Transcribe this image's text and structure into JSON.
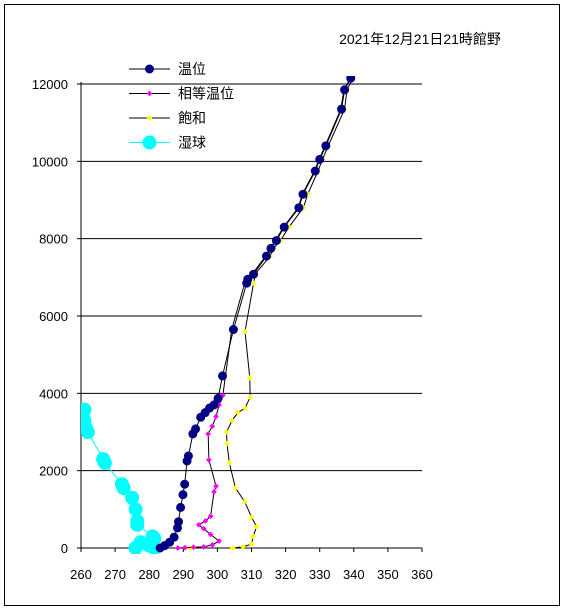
{
  "chart_data": {
    "type": "scatter",
    "title": "2021年12月21日21時館野",
    "xlim": [
      260,
      360
    ],
    "ylim": [
      0,
      12000
    ],
    "xticks": [
      260,
      270,
      280,
      290,
      300,
      310,
      320,
      330,
      340,
      350,
      360
    ],
    "yticks": [
      0,
      2000,
      4000,
      6000,
      8000,
      10000,
      12000
    ],
    "grid": "horizontal",
    "legend_position": "top-left",
    "series": [
      {
        "name": "温位",
        "color": "#000080",
        "marker": "circle-medium",
        "points": [
          [
            283.2,
            0
          ],
          [
            284.5,
            60
          ],
          [
            286.0,
            150
          ],
          [
            287.3,
            280
          ],
          [
            288.3,
            520
          ],
          [
            288.6,
            680
          ],
          [
            289.2,
            1050
          ],
          [
            289.9,
            1380
          ],
          [
            290.4,
            1650
          ],
          [
            291.1,
            2250
          ],
          [
            291.5,
            2380
          ],
          [
            292.8,
            2950
          ],
          [
            293.6,
            3080
          ],
          [
            295.1,
            3380
          ],
          [
            296.4,
            3500
          ],
          [
            297.7,
            3620
          ],
          [
            299.0,
            3700
          ],
          [
            300.2,
            3870
          ],
          [
            301.5,
            4450
          ],
          [
            304.7,
            5650
          ],
          [
            308.6,
            6850
          ],
          [
            308.9,
            6950
          ],
          [
            310.6,
            7080
          ],
          [
            314.4,
            7550
          ],
          [
            315.7,
            7750
          ],
          [
            317.3,
            7950
          ],
          [
            319.6,
            8300
          ],
          [
            323.9,
            8800
          ],
          [
            325.1,
            9150
          ],
          [
            328.7,
            9750
          ],
          [
            330.0,
            10050
          ],
          [
            331.8,
            10400
          ],
          [
            336.4,
            11350
          ],
          [
            337.3,
            11850
          ],
          [
            339.1,
            12150
          ]
        ]
      },
      {
        "name": "相等温位",
        "color": "#ff00ff",
        "marker": "diamond-small",
        "points": [
          [
            288.4,
            0
          ],
          [
            290.5,
            10
          ],
          [
            293.0,
            20
          ],
          [
            296.0,
            30
          ],
          [
            298.5,
            80
          ],
          [
            300.5,
            180
          ],
          [
            298.0,
            350
          ],
          [
            296.0,
            500
          ],
          [
            294.5,
            600
          ],
          [
            296.5,
            700
          ],
          [
            298.0,
            820
          ],
          [
            299.0,
            1450
          ],
          [
            299.6,
            1600
          ],
          [
            297.5,
            2280
          ],
          [
            297.3,
            2950
          ],
          [
            298.5,
            3150
          ],
          [
            299.6,
            3400
          ],
          [
            300.5,
            3700
          ],
          [
            301.6,
            3950
          ],
          [
            304.2,
            5650
          ],
          [
            308.0,
            6850
          ],
          [
            308.5,
            6950
          ],
          [
            310.3,
            7100
          ],
          [
            314.2,
            7550
          ],
          [
            315.4,
            7750
          ],
          [
            317.0,
            7950
          ],
          [
            319.4,
            8300
          ],
          [
            323.7,
            8800
          ],
          [
            324.9,
            9150
          ],
          [
            328.5,
            9750
          ],
          [
            329.8,
            10050
          ],
          [
            331.6,
            10400
          ],
          [
            336.2,
            11350
          ],
          [
            337.1,
            11850
          ],
          [
            339.0,
            12150
          ]
        ]
      },
      {
        "name": "飽和",
        "color": "#ffff00",
        "marker": "diamond-small",
        "points": [
          [
            292.0,
            0
          ],
          [
            304.5,
            0
          ],
          [
            307.5,
            30
          ],
          [
            310.0,
            100
          ],
          [
            310.5,
            300
          ],
          [
            311.5,
            550
          ],
          [
            310.0,
            800
          ],
          [
            308.0,
            1200
          ],
          [
            305.3,
            1550
          ],
          [
            303.5,
            2200
          ],
          [
            302.8,
            2700
          ],
          [
            302.7,
            3000
          ],
          [
            304.3,
            3300
          ],
          [
            306.0,
            3500
          ],
          [
            308.1,
            3620
          ],
          [
            309.6,
            3900
          ],
          [
            309.5,
            4400
          ],
          [
            308.1,
            5600
          ],
          [
            310.6,
            6850
          ],
          [
            311.2,
            7100
          ],
          [
            315.5,
            7550
          ],
          [
            316.5,
            7750
          ],
          [
            318.5,
            7950
          ],
          [
            321.0,
            8300
          ],
          [
            325.2,
            8800
          ],
          [
            326.5,
            9150
          ],
          [
            329.5,
            9750
          ],
          [
            330.8,
            10050
          ],
          [
            332.5,
            10400
          ],
          [
            337.3,
            11350
          ],
          [
            338.0,
            11850
          ],
          [
            339.8,
            12150
          ]
        ]
      },
      {
        "name": "湿球",
        "color": "#00ffff",
        "marker": "circle-large",
        "points": [
          [
            281.5,
            0
          ],
          [
            280.0,
            60
          ],
          [
            278.0,
            120
          ],
          [
            276.0,
            0
          ],
          [
            277.5,
            150
          ],
          [
            281.5,
            250
          ],
          [
            281.0,
            300
          ],
          [
            276.5,
            600
          ],
          [
            276.5,
            700
          ],
          [
            276.0,
            1000
          ],
          [
            275.0,
            1300
          ],
          [
            272.5,
            1550
          ],
          [
            272.0,
            1650
          ],
          [
            267.0,
            2200
          ],
          [
            266.5,
            2300
          ],
          [
            262.0,
            3000
          ],
          [
            261.5,
            3100
          ],
          [
            261.0,
            3300
          ],
          [
            260.5,
            3450
          ],
          [
            261.0,
            3580
          ],
          [
            260.0,
            3580
          ]
        ]
      }
    ]
  },
  "colors": {
    "axis": "#000000",
    "grid": "#000000",
    "line": "#000000",
    "background": "#ffffff"
  }
}
